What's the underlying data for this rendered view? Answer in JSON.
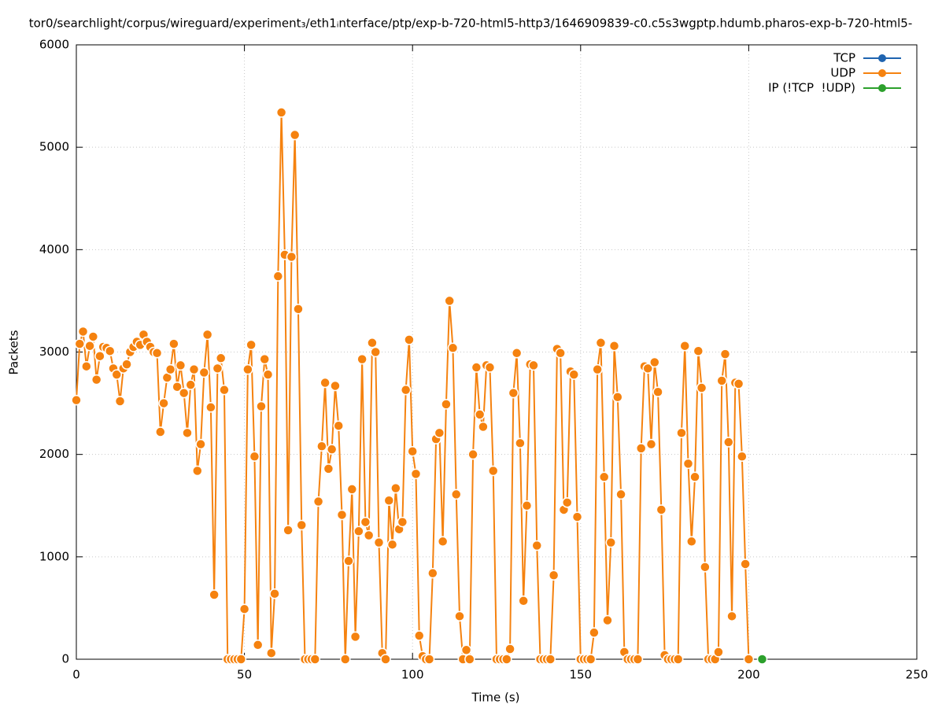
{
  "chart_data": {
    "type": "line",
    "title": "tor0/searchlight/corpus/wireguard/experiment₃/eth1ᵢnterface/ptp/exp-b-720-html5-http3/1646909839-c0.c5s3wgptp.hdumb.pharos-exp-b-720-html5-",
    "xlabel": "Time (s)",
    "ylabel": "Packets",
    "xlim": [
      0,
      250
    ],
    "xticks": [
      0,
      50,
      100,
      150,
      200,
      250
    ],
    "ylim": [
      0,
      6000
    ],
    "yticks": [
      0,
      1000,
      2000,
      3000,
      4000,
      5000,
      6000
    ],
    "grid": true,
    "legend": "top-right",
    "series": [
      {
        "name": "TCP",
        "color": "#1f64b0",
        "x": [],
        "values": []
      },
      {
        "name": "UDP",
        "color": "#f5820f",
        "x": [
          0,
          1,
          2,
          3,
          4,
          5,
          6,
          7,
          8,
          9,
          10,
          11,
          12,
          13,
          14,
          15,
          16,
          17,
          18,
          19,
          20,
          21,
          22,
          23,
          24,
          25,
          26,
          27,
          28,
          29,
          30,
          31,
          32,
          33,
          34,
          35,
          36,
          37,
          38,
          39,
          40,
          41,
          42,
          43,
          44,
          45,
          46,
          47,
          48,
          49,
          50,
          51,
          52,
          53,
          54,
          55,
          56,
          57,
          58,
          59,
          60,
          61,
          62,
          63,
          64,
          65,
          66,
          67,
          68,
          69,
          70,
          71,
          72,
          73,
          74,
          75,
          76,
          77,
          78,
          79,
          80,
          81,
          82,
          83,
          84,
          85,
          86,
          87,
          88,
          89,
          90,
          91,
          92,
          93,
          94,
          95,
          96,
          97,
          98,
          99,
          100,
          101,
          102,
          103,
          104,
          105,
          106,
          107,
          108,
          109,
          110,
          111,
          112,
          113,
          114,
          115,
          116,
          117,
          118,
          119,
          120,
          121,
          122,
          123,
          124,
          125,
          126,
          127,
          128,
          129,
          130,
          131,
          132,
          133,
          134,
          135,
          136,
          137,
          138,
          139,
          140,
          141,
          142,
          143,
          144,
          145,
          146,
          147,
          148,
          149,
          150,
          151,
          152,
          153,
          154,
          155,
          156,
          157,
          158,
          159,
          160,
          161,
          162,
          163,
          164,
          165,
          166,
          167,
          168,
          169,
          170,
          171,
          172,
          173,
          174,
          175,
          176,
          177,
          178,
          179,
          180,
          181,
          182,
          183,
          184,
          185,
          186,
          187,
          188,
          189,
          190,
          191,
          192,
          193,
          194,
          195,
          196,
          197,
          198,
          199,
          200
        ],
        "values": [
          2530,
          3080,
          3200,
          2860,
          3060,
          3150,
          2730,
          2960,
          3050,
          3040,
          3010,
          2840,
          2780,
          2520,
          2840,
          2880,
          3000,
          3050,
          3100,
          3070,
          3170,
          3100,
          3050,
          3000,
          2990,
          2220,
          2500,
          2750,
          2830,
          3080,
          2660,
          2870,
          2600,
          2210,
          2680,
          2830,
          1840,
          2100,
          2800,
          3170,
          2460,
          630,
          2840,
          2940,
          2630,
          0,
          0,
          0,
          0,
          0,
          490,
          2830,
          3070,
          1980,
          140,
          2470,
          2930,
          2780,
          60,
          640,
          3740,
          5340,
          3950,
          1260,
          3930,
          5120,
          3420,
          1310,
          0,
          0,
          0,
          0,
          1540,
          2080,
          2700,
          1860,
          2050,
          2670,
          2280,
          1410,
          0,
          960,
          1660,
          220,
          1250,
          2930,
          1340,
          1210,
          3090,
          3000,
          1140,
          60,
          0,
          1550,
          1120,
          1670,
          1270,
          1340,
          2630,
          3120,
          2030,
          1810,
          230,
          30,
          0,
          0,
          840,
          2150,
          2210,
          1150,
          2490,
          3500,
          3040,
          1610,
          420,
          0,
          90,
          0,
          2000,
          2850,
          2390,
          2270,
          2870,
          2850,
          1840,
          0,
          0,
          0,
          0,
          100,
          2600,
          2990,
          2110,
          570,
          1500,
          2880,
          2870,
          1110,
          0,
          0,
          0,
          0,
          820,
          3030,
          2990,
          1460,
          1530,
          2810,
          2780,
          1390,
          0,
          0,
          0,
          0,
          260,
          2830,
          3090,
          1780,
          380,
          1140,
          3060,
          2560,
          1610,
          70,
          0,
          0,
          0,
          0,
          2060,
          2860,
          2840,
          2100,
          2900,
          2610,
          1460,
          40,
          0,
          0,
          0,
          0,
          2210,
          3060,
          1910,
          1150,
          1780,
          3010,
          2650,
          900,
          0,
          0,
          0,
          70,
          2720,
          2980,
          2120,
          420,
          2700,
          2690,
          1980,
          930,
          0
        ]
      },
      {
        "name": "IP (!TCP  !UDP)",
        "color": "#2ca02c",
        "x": [
          204
        ],
        "values": [
          0
        ]
      }
    ]
  }
}
